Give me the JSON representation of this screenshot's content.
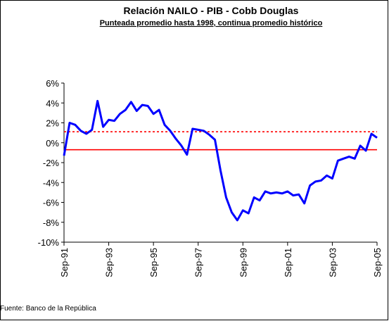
{
  "chart_data": {
    "type": "line",
    "title": "Relación NAILO - PIB - Cobb Douglas",
    "subtitle": "Punteada promedio hasta 1998, continua promedio histórico",
    "source": "Fuente: Banco de la República",
    "categories": [
      "Sep-91",
      null,
      null,
      null,
      null,
      null,
      null,
      null,
      "Sep-93",
      null,
      null,
      null,
      null,
      null,
      null,
      null,
      "Sep-95",
      null,
      null,
      null,
      null,
      null,
      null,
      null,
      "Sep-97",
      null,
      null,
      null,
      null,
      null,
      null,
      null,
      "Sep-99",
      null,
      null,
      null,
      null,
      null,
      null,
      null,
      "Sep-01",
      null,
      null,
      null,
      null,
      null,
      null,
      null,
      "Sep-03",
      null,
      null,
      null,
      null,
      null,
      null,
      null,
      "Sep-05"
    ],
    "series": [
      {
        "color": "#0000ff",
        "values": [
          -1.3,
          2.0,
          1.8,
          1.2,
          0.9,
          1.3,
          4.2,
          1.6,
          2.3,
          2.2,
          2.9,
          3.3,
          4.1,
          3.2,
          3.8,
          3.7,
          2.9,
          3.3,
          1.8,
          1.2,
          0.4,
          -0.3,
          -1.2,
          1.4,
          1.3,
          1.2,
          0.8,
          0.3,
          -2.8,
          -5.5,
          -7.0,
          -7.8,
          -6.8,
          -7.1,
          -5.5,
          -5.8,
          -4.9,
          -5.1,
          -5.0,
          -5.1,
          -4.9,
          -5.3,
          -5.2,
          -6.1,
          -4.3,
          -3.9,
          -3.8,
          -3.3,
          -3.6,
          -1.8,
          -1.6,
          -1.4,
          -1.6,
          -0.3,
          -0.8,
          0.9,
          0.5
        ]
      }
    ],
    "reference_lines": [
      {
        "value": 1.1,
        "color": "#ff0000",
        "style": "dotted"
      },
      {
        "value": -0.7,
        "color": "#ff0000",
        "style": "solid"
      }
    ],
    "ylim": [
      -10,
      6
    ],
    "yticks": [
      {
        "value": -10,
        "label": "-10%"
      },
      {
        "value": -8,
        "label": "-8%"
      },
      {
        "value": -6,
        "label": "-6%"
      },
      {
        "value": -4,
        "label": "-4%"
      },
      {
        "value": -2,
        "label": "-2%"
      },
      {
        "value": 0,
        "label": "0%"
      },
      {
        "value": 2,
        "label": "2%"
      },
      {
        "value": 4,
        "label": "4%"
      },
      {
        "value": 6,
        "label": "6%"
      }
    ]
  }
}
